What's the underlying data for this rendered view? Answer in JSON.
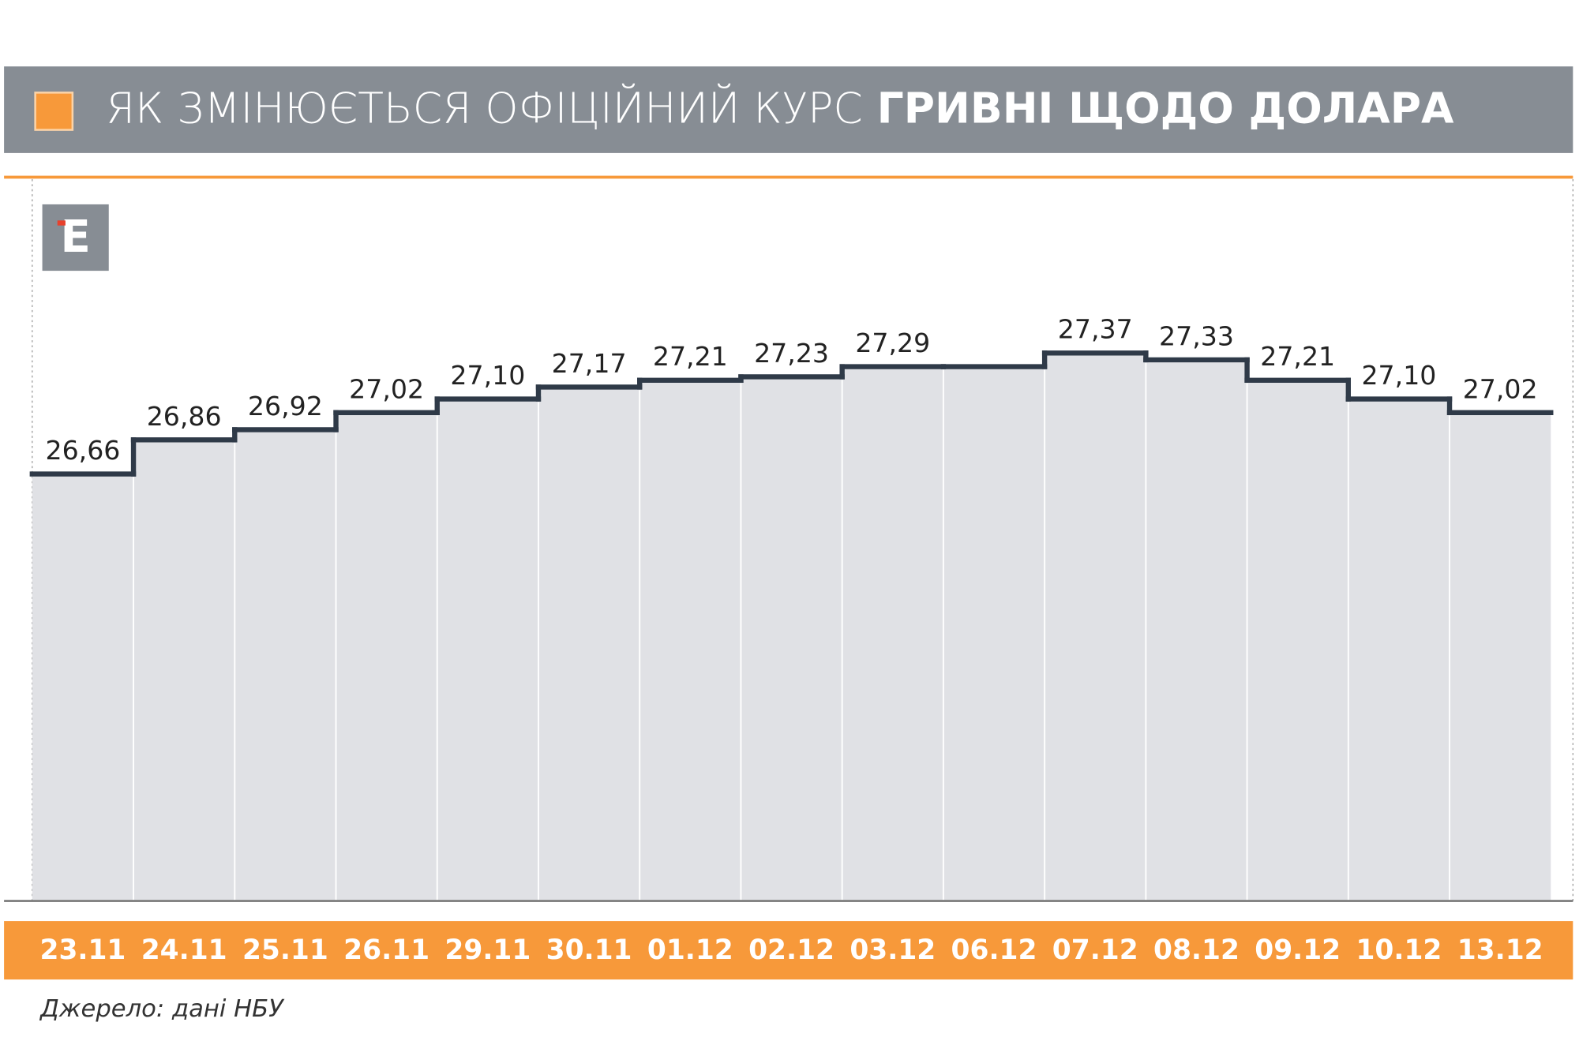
{
  "chart_data": {
    "type": "step",
    "title": {
      "regular": "ЯК ЗМІНЮЄТЬСЯ ОФІЦІЙНИЙ КУРС",
      "bold": "ГРИВНІ ЩОДО ДОЛАРА"
    },
    "categories": [
      "23.11",
      "24.11",
      "25.11",
      "26.11",
      "29.11",
      "30.11",
      "01.12",
      "02.12",
      "03.12",
      "06.12",
      "07.12",
      "08.12",
      "09.12",
      "10.12",
      "13.12"
    ],
    "values": [
      26.66,
      26.86,
      26.92,
      27.02,
      27.1,
      27.17,
      27.21,
      27.23,
      27.29,
      27.29,
      27.37,
      27.33,
      27.21,
      27.1,
      27.02
    ],
    "value_labels": [
      "26,66",
      "26,86",
      "26,92",
      "27,02",
      "27,10",
      "27,17",
      "27,21",
      "27,23",
      "27,29",
      null,
      "27,37",
      "27,33",
      "27,21",
      "27,10",
      "27,02"
    ],
    "ylim": [
      24.16,
      28.39
    ],
    "color": "#2f3a48",
    "area_color": "#e0e1e5",
    "source": "Джерело: дані НБУ"
  }
}
